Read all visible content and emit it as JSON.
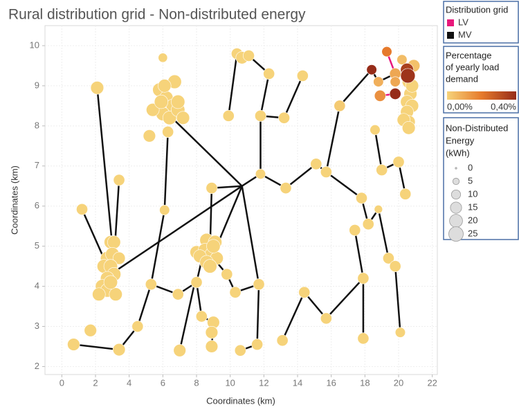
{
  "chart_data": {
    "type": "scatter",
    "title": "Rural distribution grid - Non-distributed energy",
    "x_label": "Coordinates (km)",
    "y_label": "Coordinates (km)",
    "xlim": [
      -1,
      22.3
    ],
    "ylim": [
      1.8,
      10.5
    ],
    "xticks": [
      0,
      2,
      4,
      6,
      8,
      10,
      12,
      14,
      16,
      18,
      20,
      22
    ],
    "yticks": [
      2,
      3,
      4,
      5,
      6,
      7,
      8,
      9,
      10
    ],
    "grid": true,
    "series": [
      {
        "name": "LV",
        "color": "#e8187c",
        "lines": [
          {
            "x": [
              19.3,
              19.8
            ],
            "y": [
              9.85,
              9.3
            ]
          },
          {
            "x": [
              18.9,
              19.8
            ],
            "y": [
              8.75,
              8.8
            ]
          },
          {
            "x": [
              19.8,
              20.55
            ],
            "y": [
              9.3,
              9.25
            ]
          }
        ]
      },
      {
        "name": "MV",
        "color": "#111111",
        "lines": [
          {
            "x": [
              0.7,
              3.4,
              4.5,
              5.3,
              6.1,
              6.3
            ],
            "y": [
              2.55,
              2.42,
              3.0,
              4.05,
              5.9,
              7.85
            ]
          },
          {
            "x": [
              10.7,
              2.9
            ],
            "y": [
              6.5,
              4.3
            ]
          },
          {
            "x": [
              10.7,
              6.3
            ],
            "y": [
              6.5,
              8.3
            ]
          },
          {
            "x": [
              10.7,
              8.9,
              8.8
            ],
            "y": [
              6.5,
              6.45,
              4.9
            ]
          },
          {
            "x": [
              10.7,
              8.8
            ],
            "y": [
              6.5,
              4.6
            ]
          },
          {
            "x": [
              10.7,
              11.7,
              11.6
            ],
            "y": [
              6.5,
              4.05,
              2.55
            ]
          },
          {
            "x": [
              10.7,
              11.8,
              11.8,
              12.3,
              11.1,
              10.4,
              9.9
            ],
            "y": [
              6.5,
              6.8,
              8.25,
              9.3,
              9.75,
              9.8,
              8.25
            ]
          },
          {
            "x": [
              2.1,
              3.0
            ],
            "y": [
              8.95,
              5.0
            ]
          },
          {
            "x": [
              3.4,
              3.0
            ],
            "y": [
              6.65,
              4.0
            ]
          },
          {
            "x": [
              1.2,
              2.6
            ],
            "y": [
              5.92,
              4.6
            ]
          },
          {
            "x": [
              5.3,
              6.9,
              8.0,
              8.5
            ],
            "y": [
              4.05,
              3.8,
              4.1,
              5.0
            ]
          },
          {
            "x": [
              8.0,
              8.3,
              9.0
            ],
            "y": [
              4.1,
              3.25,
              3.1
            ]
          },
          {
            "x": [
              7.0,
              7.9
            ],
            "y": [
              2.4,
              4.1
            ]
          },
          {
            "x": [
              8.9,
              9.0
            ],
            "y": [
              2.5,
              3.1
            ]
          },
          {
            "x": [
              8.8,
              9.8,
              10.3,
              11.7
            ],
            "y": [
              4.8,
              4.3,
              3.85,
              4.05
            ]
          },
          {
            "x": [
              11.8,
              13.2,
              14.3
            ],
            "y": [
              8.25,
              8.2,
              9.25
            ]
          },
          {
            "x": [
              11.8,
              13.3,
              15.1,
              15.7,
              16.5,
              18.4
            ],
            "y": [
              6.8,
              6.45,
              7.05,
              6.85,
              8.5,
              9.4
            ]
          },
          {
            "x": [
              15.7,
              17.8,
              18.2,
              18.8,
              19.4,
              19.8,
              20.1
            ],
            "y": [
              6.85,
              6.2,
              5.55,
              5.92,
              4.7,
              4.5,
              2.85
            ]
          },
          {
            "x": [
              17.4,
              17.9,
              17.9
            ],
            "y": [
              5.4,
              4.2,
              2.7
            ]
          },
          {
            "x": [
              17.9,
              15.7,
              14.4,
              13.1
            ],
            "y": [
              4.2,
              3.2,
              3.85,
              2.65
            ]
          },
          {
            "x": [
              10.6,
              11.6
            ],
            "y": [
              2.4,
              2.55
            ]
          },
          {
            "x": [
              18.6,
              19.0,
              20.0,
              20.4
            ],
            "y": [
              7.9,
              6.9,
              7.1,
              6.3
            ]
          },
          {
            "x": [
              18.4,
              18.8,
              19.8
            ],
            "y": [
              9.4,
              9.1,
              9.3
            ]
          }
        ]
      }
    ],
    "points": {
      "x": [
        5.8,
        6.2,
        6.6,
        6.0,
        6.4,
        6.9,
        7.2,
        5.4,
        5.9,
        6.7,
        6.1,
        6.9,
        6.3,
        5.2,
        6.0,
        6.1,
        2.9,
        3.1,
        2.7,
        3.0,
        3.4,
        2.5,
        2.9,
        3.1,
        2.7,
        2.4,
        2.7,
        3.2,
        2.2,
        2.9,
        2.1,
        3.4,
        1.2,
        0.7,
        1.7,
        3.4,
        4.5,
        5.3,
        6.9,
        7.0,
        8.0,
        8.3,
        9.0,
        8.9,
        8.9,
        8.9,
        8.6,
        9.1,
        8.0,
        8.5,
        8.9,
        9.2,
        8.2,
        8.6,
        8.8,
        9.0,
        9.8,
        10.3,
        11.7,
        11.6,
        10.6,
        13.1,
        14.4,
        15.7,
        17.9,
        17.9,
        17.4,
        18.2,
        17.8,
        18.8,
        19.4,
        19.8,
        20.1,
        20.4,
        20.0,
        19.0,
        18.6,
        16.5,
        15.7,
        15.1,
        13.3,
        11.8,
        11.8,
        13.2,
        14.3,
        12.3,
        9.9,
        10.4,
        10.7,
        11.1,
        20.6,
        20.7,
        20.5,
        20.8,
        20.5,
        20.6,
        20.3,
        20.6,
        20.8,
        20.2,
        20.9,
        20.5,
        20.55,
        19.8,
        19.8,
        19.8,
        18.9,
        18.8,
        18.4,
        19.3
      ],
      "y": [
        8.9,
        8.7,
        8.5,
        8.3,
        8.2,
        8.4,
        8.2,
        8.4,
        8.6,
        9.1,
        9.0,
        8.6,
        7.85,
        7.75,
        9.7,
        5.9,
        5.1,
        5.1,
        4.7,
        4.8,
        4.7,
        4.5,
        4.5,
        4.3,
        4.2,
        4.0,
        3.9,
        3.8,
        3.8,
        4.1,
        8.95,
        6.65,
        5.92,
        2.55,
        2.9,
        2.42,
        3.0,
        4.05,
        3.8,
        2.4,
        4.1,
        3.25,
        3.1,
        2.85,
        2.5,
        6.45,
        5.15,
        5.1,
        4.85,
        4.9,
        4.8,
        4.7,
        4.75,
        4.6,
        4.5,
        5.0,
        4.3,
        3.85,
        4.05,
        2.55,
        2.4,
        2.65,
        3.85,
        3.2,
        2.7,
        4.2,
        5.4,
        5.55,
        6.2,
        5.92,
        4.7,
        4.5,
        2.85,
        6.3,
        7.1,
        6.9,
        7.9,
        8.5,
        6.85,
        7.05,
        6.45,
        6.8,
        8.25,
        8.2,
        9.25,
        9.3,
        8.25,
        9.8,
        9.7,
        9.75,
        9.1,
        8.8,
        8.6,
        8.5,
        8.35,
        8.1,
        8.15,
        7.95,
        9.0,
        9.65,
        9.5,
        9.4,
        9.25,
        9.3,
        9.1,
        8.8,
        8.75,
        9.1,
        9.4,
        9.85
      ],
      "size": [
        22,
        22,
        22,
        22,
        22,
        22,
        20,
        20,
        22,
        22,
        20,
        22,
        15,
        18,
        10,
        12,
        20,
        20,
        22,
        22,
        18,
        22,
        22,
        22,
        22,
        22,
        22,
        20,
        20,
        22,
        20,
        15,
        15,
        18,
        18,
        18,
        15,
        15,
        15,
        18,
        15,
        15,
        18,
        18,
        18,
        15,
        22,
        22,
        20,
        22,
        22,
        20,
        20,
        22,
        22,
        22,
        15,
        15,
        15,
        15,
        15,
        15,
        15,
        15,
        15,
        15,
        15,
        15,
        15,
        8,
        15,
        15,
        12,
        15,
        15,
        15,
        12,
        15,
        15,
        15,
        15,
        12,
        15,
        15,
        15,
        15,
        15,
        15,
        18,
        15,
        20,
        20,
        20,
        20,
        20,
        20,
        20,
        20,
        20,
        12,
        18,
        20,
        25,
        15,
        12,
        15,
        15,
        12,
        12,
        12
      ],
      "percentage": [
        0,
        0,
        0,
        0,
        0,
        0,
        0,
        0,
        0,
        0,
        0,
        0,
        0,
        0,
        0,
        0,
        0,
        0,
        0,
        0,
        0,
        0,
        0,
        0,
        0,
        0,
        0,
        0,
        0,
        0,
        0,
        0,
        0,
        0,
        0,
        0,
        0,
        0,
        0,
        0,
        0,
        0,
        0,
        0,
        0,
        0,
        0,
        0,
        0,
        0,
        0,
        0,
        0,
        0,
        0,
        0,
        0,
        0,
        0,
        0,
        0,
        0,
        0,
        0,
        0,
        0,
        0,
        0,
        0,
        0,
        0,
        0,
        0,
        0,
        0,
        0,
        0,
        0.02,
        0,
        0,
        0,
        0,
        0,
        0,
        0,
        0,
        0,
        0,
        0,
        0,
        0,
        0,
        0,
        0,
        0,
        0,
        0,
        0,
        0,
        0.05,
        0.04,
        0.35,
        0.38,
        0.1,
        0.1,
        0.4,
        0.15,
        0.08,
        0.4,
        0.2
      ]
    },
    "grid_legend_title": "Distribution grid",
    "color_legend": {
      "title": [
        "Percentage",
        "of yearly load",
        "demand"
      ],
      "colors": [
        "#f6d37a",
        "#e67a2c",
        "#962c19"
      ],
      "ticks": [
        {
          "value": 0,
          "label": "0,00%"
        },
        {
          "value": 0.4,
          "label": "0,40%"
        }
      ]
    },
    "size_legend": {
      "title": [
        "Non-Distributed",
        "Energy",
        "(kWh)"
      ],
      "values": [
        0,
        5,
        10,
        15,
        20,
        25
      ]
    }
  }
}
